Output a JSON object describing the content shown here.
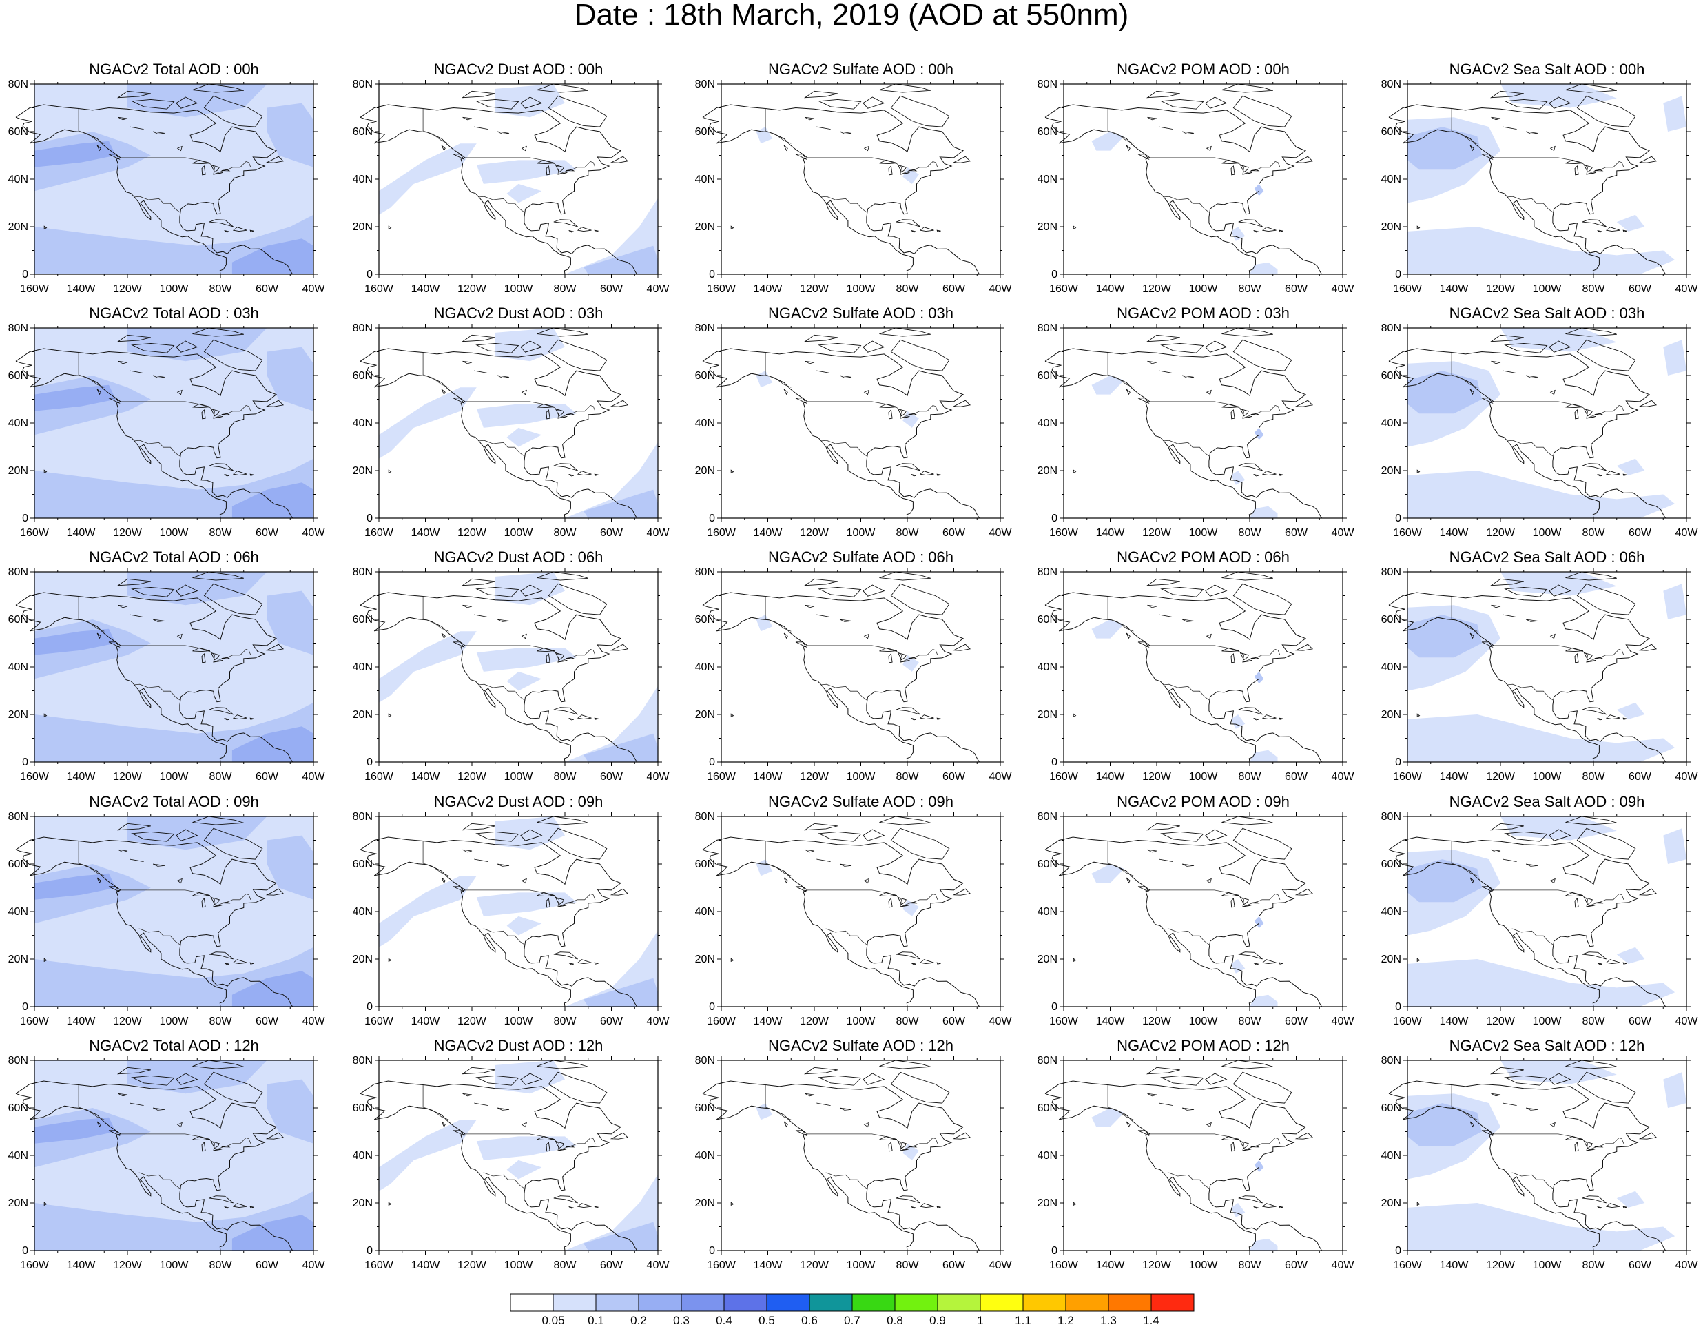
{
  "title": "Date : 18th March, 2019 (AOD at 550nm)",
  "y_ticks": [
    "0",
    "20N",
    "40N",
    "60N",
    "80N"
  ],
  "x_ticks": [
    "160W",
    "140W",
    "120W",
    "100W",
    "80W",
    "60W",
    "40W"
  ],
  "panels": [
    {
      "title": "NGACv2 Total AOD : 00h",
      "species": "total"
    },
    {
      "title": "NGACv2 Dust AOD : 00h",
      "species": "dust"
    },
    {
      "title": "NGACv2 Sulfate AOD : 00h",
      "species": "sulfate"
    },
    {
      "title": "NGACv2 POM AOD : 00h",
      "species": "pom"
    },
    {
      "title": "NGACv2 Sea Salt AOD : 00h",
      "species": "seasalt"
    },
    {
      "title": "NGACv2 Total AOD : 03h",
      "species": "total"
    },
    {
      "title": "NGACv2 Dust AOD : 03h",
      "species": "dust"
    },
    {
      "title": "NGACv2 Sulfate AOD : 03h",
      "species": "sulfate"
    },
    {
      "title": "NGACv2 POM AOD : 03h",
      "species": "pom"
    },
    {
      "title": "NGACv2 Sea Salt AOD : 03h",
      "species": "seasalt"
    },
    {
      "title": "NGACv2 Total AOD : 06h",
      "species": "total"
    },
    {
      "title": "NGACv2 Dust AOD : 06h",
      "species": "dust"
    },
    {
      "title": "NGACv2 Sulfate AOD : 06h",
      "species": "sulfate"
    },
    {
      "title": "NGACv2 POM AOD : 06h",
      "species": "pom"
    },
    {
      "title": "NGACv2 Sea Salt AOD : 06h",
      "species": "seasalt"
    },
    {
      "title": "NGACv2 Total AOD : 09h",
      "species": "total"
    },
    {
      "title": "NGACv2 Dust AOD : 09h",
      "species": "dust"
    },
    {
      "title": "NGACv2 Sulfate AOD : 09h",
      "species": "sulfate"
    },
    {
      "title": "NGACv2 POM AOD : 09h",
      "species": "pom"
    },
    {
      "title": "NGACv2 Sea Salt  AOD : 09h",
      "species": "seasalt"
    },
    {
      "title": "NGACv2 Total AOD  : 12h",
      "species": "total"
    },
    {
      "title": "NGACv2 Dust AOD : 12h",
      "species": "dust"
    },
    {
      "title": "NGACv2 Sulfate AOD : 12h",
      "species": "sulfate"
    },
    {
      "title": "NGACv2 POM  AOD : 12h",
      "species": "pom"
    },
    {
      "title": "NGACv2 Sea Salt  AOD : 12h",
      "species": "seasalt"
    }
  ],
  "colorbar": {
    "colors": [
      "#ffffff",
      "#d6e1fb",
      "#b6c8f7",
      "#97aef3",
      "#7b93ee",
      "#5d72e8",
      "#1f5ef2",
      "#10959a",
      "#38d813",
      "#72f20f",
      "#b5f43c",
      "#ffff10",
      "#ffc800",
      "#ffa000",
      "#ff7800",
      "#ff2a10"
    ],
    "labels": [
      "0.05",
      "0.1",
      "0.2",
      "0.3",
      "0.4",
      "0.5",
      "0.6",
      "0.7",
      "0.8",
      "0.9",
      "1",
      "1.1",
      "1.2",
      "1.3",
      "1.4"
    ]
  },
  "shade_colors": [
    "#d6e1fb",
    "#b6c8f7",
    "#97aef3"
  ]
}
